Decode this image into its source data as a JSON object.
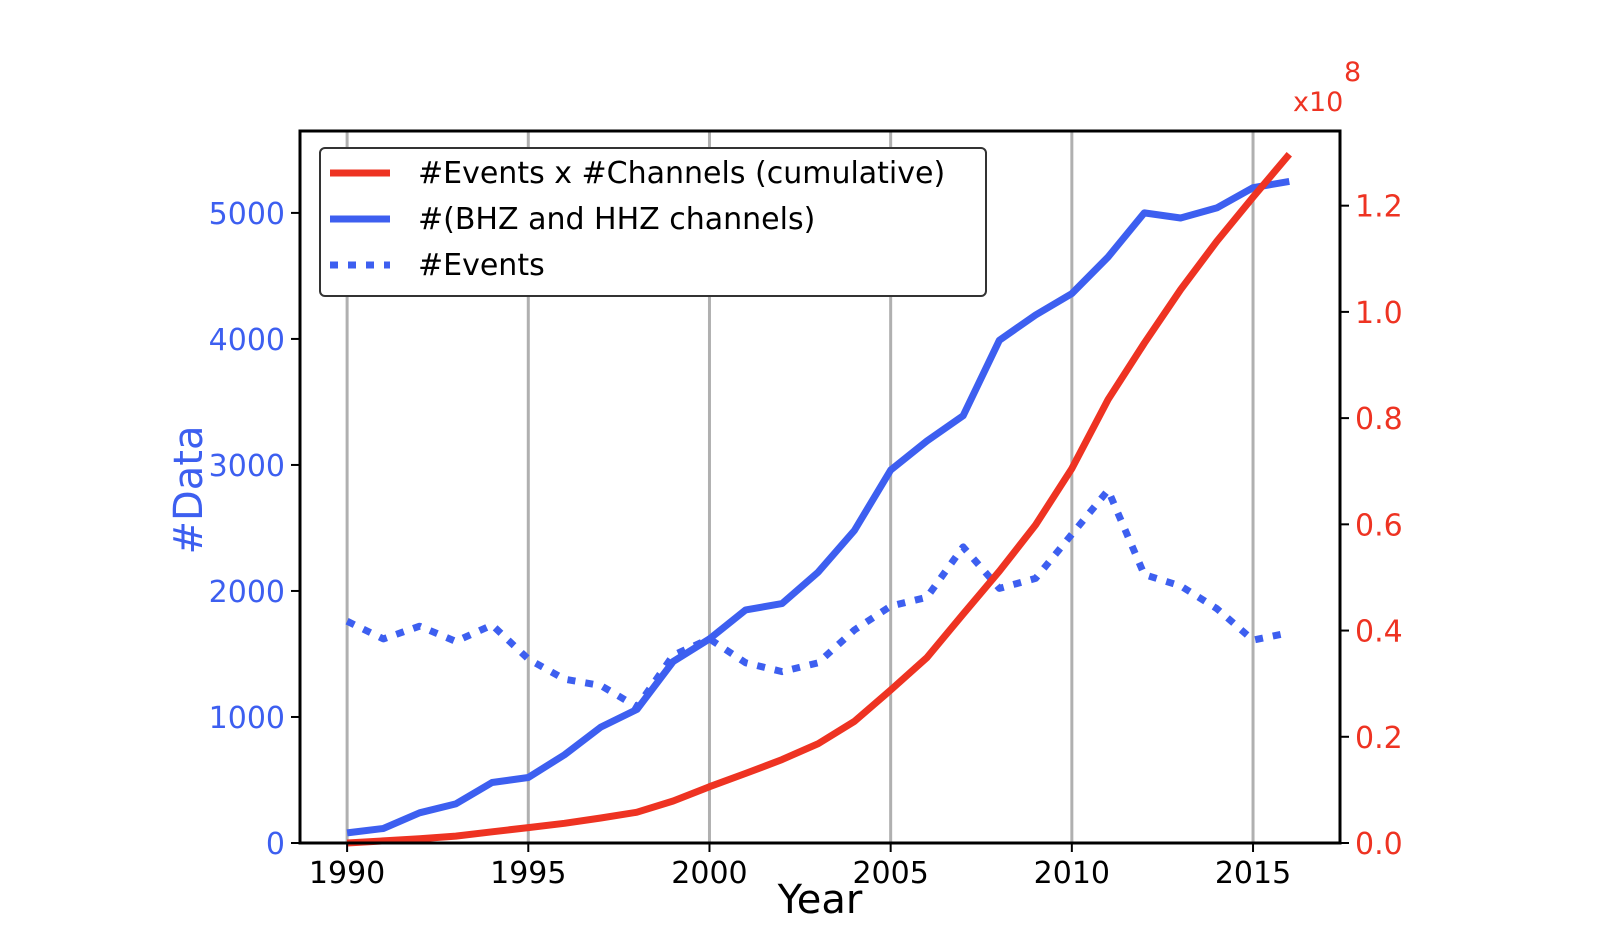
{
  "chart_data": {
    "type": "line",
    "xlabel": "Year",
    "ylabel_left": "#Data",
    "ylabel_right": "",
    "right_axis_multiplier": {
      "base": "x10",
      "exponent": "8"
    },
    "xlim": [
      1988.7,
      2017.4
    ],
    "ylim_left": [
      0,
      5650
    ],
    "ylim_right": [
      0,
      1.3406
    ],
    "x_ticks": [
      1990,
      1995,
      2000,
      2005,
      2010,
      2015
    ],
    "x_tick_labels": [
      "1990",
      "1995",
      "2000",
      "2005",
      "2010",
      "2015"
    ],
    "y_left_ticks": [
      0,
      1000,
      2000,
      3000,
      4000,
      5000
    ],
    "y_left_tick_labels": [
      "0",
      "1000",
      "2000",
      "3000",
      "4000",
      "5000"
    ],
    "y_right_ticks": [
      0,
      0.2,
      0.4,
      0.6,
      0.8,
      1.0,
      1.2
    ],
    "y_right_tick_labels": [
      "0.0",
      "0.2",
      "0.4",
      "0.6",
      "0.8",
      "1.0",
      "1.2"
    ],
    "grid": "vertical lines at x ticks",
    "legend_position": "top-left",
    "x": [
      1990,
      1991,
      1992,
      1993,
      1994,
      1995,
      1996,
      1997,
      1998,
      1999,
      2000,
      2001,
      2002,
      2003,
      2004,
      2005,
      2006,
      2007,
      2008,
      2009,
      2010,
      2011,
      2012,
      2013,
      2014,
      2015,
      2016
    ],
    "series": [
      {
        "name": "#Events x #Channels (cumulative)",
        "axis": "right",
        "style": "solid",
        "color": "#ee3322",
        "values": [
          0.0,
          0.004,
          0.008,
          0.013,
          0.021,
          0.029,
          0.037,
          0.047,
          0.058,
          0.079,
          0.106,
          0.131,
          0.157,
          0.187,
          0.229,
          0.288,
          0.349,
          0.431,
          0.512,
          0.599,
          0.705,
          0.835,
          0.941,
          1.042,
          1.133,
          1.216,
          1.297
        ]
      },
      {
        "name": "#(BHZ and HHZ channels)",
        "axis": "left",
        "style": "solid",
        "color": "#3d5ff0",
        "values": [
          80,
          115,
          240,
          310,
          480,
          520,
          700,
          920,
          1060,
          1440,
          1620,
          1850,
          1900,
          2150,
          2480,
          2960,
          3190,
          3390,
          3990,
          4190,
          4360,
          4650,
          5000,
          4960,
          5040,
          5200,
          5250
        ]
      },
      {
        "name": "#Events",
        "axis": "left",
        "style": "dotted",
        "color": "#3d5ff0",
        "values": [
          1760,
          1620,
          1720,
          1600,
          1730,
          1460,
          1300,
          1250,
          1080,
          1490,
          1620,
          1430,
          1360,
          1430,
          1690,
          1880,
          1950,
          2350,
          2020,
          2100,
          2450,
          2800,
          2130,
          2040,
          1860,
          1610,
          1670
        ]
      }
    ]
  },
  "colors": {
    "blue": "#3d5ff0",
    "red": "#ee3322",
    "grid": "#b0b0b0",
    "frame": "#000000"
  }
}
